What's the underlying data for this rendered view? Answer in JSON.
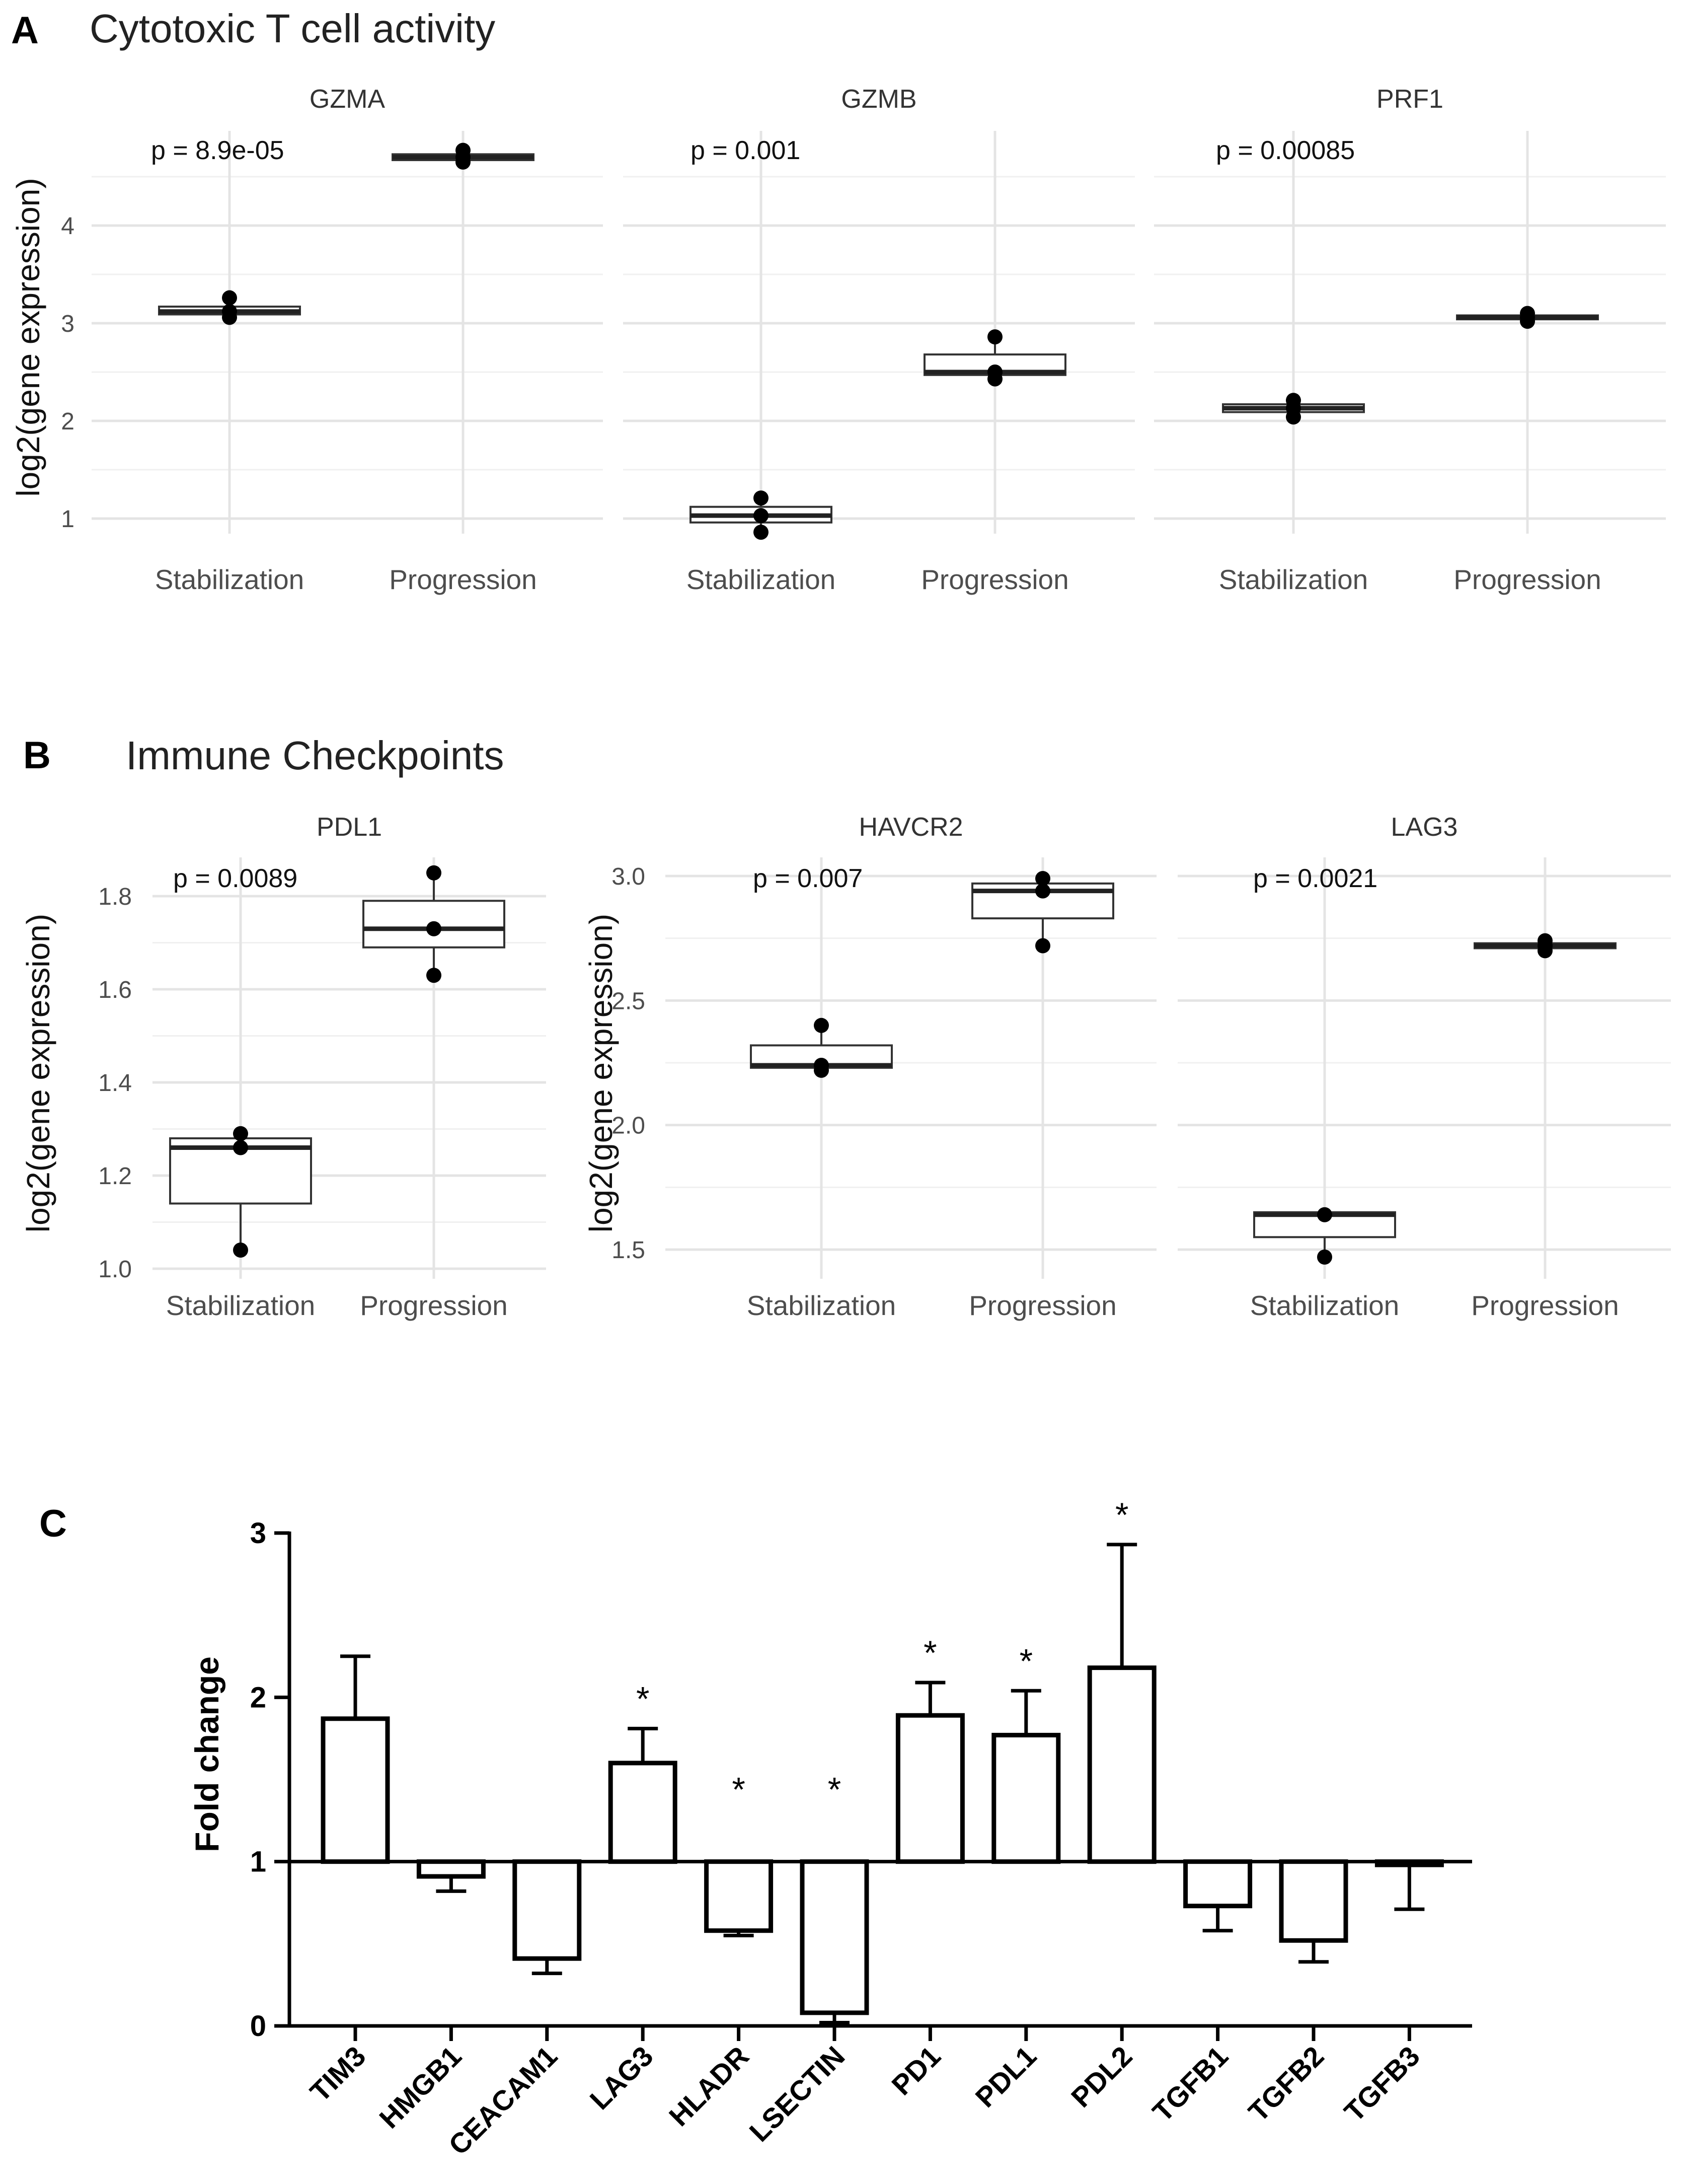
{
  "panels": {
    "A": {
      "letter": "A",
      "title": "Cytotoxic T cell activity"
    },
    "B": {
      "letter": "B",
      "title": "Immune Checkpoints"
    },
    "C": {
      "letter": "C"
    }
  },
  "chart_data": [
    {
      "id": "A-GZMA",
      "type": "box",
      "panel": "A",
      "title": "GZMA",
      "pvalue": "p = 8.9e-05",
      "ylabel": "log2(gene expression)",
      "ylim": [
        0.75,
        4.85
      ],
      "yticks": [
        1,
        2,
        3,
        4
      ],
      "tick_labels": [
        "1",
        "2",
        "3",
        "4"
      ],
      "categories": [
        "Stabilization",
        "Progression"
      ],
      "boxes": [
        {
          "group": "Stabilization",
          "q1": 3.09,
          "median": 3.12,
          "q3": 3.17,
          "wmin": 3.06,
          "wmax": 3.26,
          "points": [
            3.06,
            3.12,
            3.26
          ]
        },
        {
          "group": "Progression",
          "q1": 4.67,
          "median": 4.7,
          "q3": 4.73,
          "wmin": 4.65,
          "wmax": 4.77,
          "points": [
            4.65,
            4.7,
            4.77
          ]
        }
      ]
    },
    {
      "id": "A-GZMB",
      "type": "box",
      "panel": "A",
      "title": "GZMB",
      "pvalue": "p = 0.001",
      "ylabel": "",
      "ylim": [
        0.75,
        4.85
      ],
      "yticks": [
        1,
        2,
        3,
        4
      ],
      "tick_labels": [],
      "categories": [
        "Stabilization",
        "Progression"
      ],
      "boxes": [
        {
          "group": "Stabilization",
          "q1": 0.96,
          "median": 1.03,
          "q3": 1.12,
          "wmin": 0.86,
          "wmax": 1.21,
          "points": [
            0.86,
            1.03,
            1.21
          ]
        },
        {
          "group": "Progression",
          "q1": 2.47,
          "median": 2.5,
          "q3": 2.68,
          "wmin": 2.43,
          "wmax": 2.86,
          "points": [
            2.43,
            2.5,
            2.86
          ]
        }
      ]
    },
    {
      "id": "A-PRF1",
      "type": "box",
      "panel": "A",
      "title": "PRF1",
      "pvalue": "p = 0.00085",
      "ylabel": "",
      "ylim": [
        0.75,
        4.85
      ],
      "yticks": [
        1,
        2,
        3,
        4
      ],
      "tick_labels": [],
      "categories": [
        "Stabilization",
        "Progression"
      ],
      "boxes": [
        {
          "group": "Stabilization",
          "q1": 2.09,
          "median": 2.13,
          "q3": 2.17,
          "wmin": 2.04,
          "wmax": 2.21,
          "points": [
            2.04,
            2.13,
            2.21
          ]
        },
        {
          "group": "Progression",
          "q1": 3.04,
          "median": 3.06,
          "q3": 3.08,
          "wmin": 3.02,
          "wmax": 3.1,
          "points": [
            3.02,
            3.06,
            3.1
          ]
        }
      ]
    },
    {
      "id": "B-PDL1",
      "type": "box",
      "panel": "B",
      "title": "PDL1",
      "pvalue": "p = 0.0089",
      "ylabel": "log2(gene expression)",
      "ylim": [
        0.98,
        1.88
      ],
      "yticks": [
        1.0,
        1.2,
        1.4,
        1.6,
        1.8
      ],
      "tick_labels": [
        "1.0",
        "1.2",
        "1.4",
        "1.6",
        "1.8"
      ],
      "categories": [
        "Stabilization",
        "Progression"
      ],
      "boxes": [
        {
          "group": "Stabilization",
          "q1": 1.14,
          "median": 1.26,
          "q3": 1.28,
          "wmin": 1.04,
          "wmax": 1.29,
          "points": [
            1.04,
            1.26,
            1.29
          ]
        },
        {
          "group": "Progression",
          "q1": 1.69,
          "median": 1.73,
          "q3": 1.79,
          "wmin": 1.63,
          "wmax": 1.85,
          "points": [
            1.63,
            1.73,
            1.85
          ]
        }
      ]
    },
    {
      "id": "B-HAVCR2",
      "type": "box",
      "panel": "B",
      "title": "HAVCR2",
      "pvalue": "p = 0.007",
      "ylabel": "log2(gene expression)",
      "ylim": [
        1.4,
        3.07
      ],
      "yticks": [
        1.5,
        2.0,
        2.5,
        3.0
      ],
      "tick_labels": [
        "1.5",
        "2.0",
        "2.5",
        "3.0"
      ],
      "categories": [
        "Stabilization",
        "Progression"
      ],
      "boxes": [
        {
          "group": "Stabilization",
          "q1": 2.23,
          "median": 2.24,
          "q3": 2.32,
          "wmin": 2.22,
          "wmax": 2.4,
          "points": [
            2.22,
            2.24,
            2.4
          ]
        },
        {
          "group": "Progression",
          "q1": 2.83,
          "median": 2.94,
          "q3": 2.97,
          "wmin": 2.72,
          "wmax": 2.99,
          "points": [
            2.72,
            2.94,
            2.99
          ]
        }
      ]
    },
    {
      "id": "B-LAG3",
      "type": "box",
      "panel": "B",
      "title": "LAG3",
      "pvalue": "p = 0.0021",
      "ylabel": "",
      "ylim": [
        1.4,
        3.07
      ],
      "yticks": [
        1.5,
        2.0,
        2.5,
        3.0
      ],
      "tick_labels": [],
      "categories": [
        "Stabilization",
        "Progression"
      ],
      "boxes": [
        {
          "group": "Stabilization",
          "q1": 1.55,
          "median": 1.64,
          "q3": 1.65,
          "wmin": 1.47,
          "wmax": 1.64,
          "points": [
            1.47,
            1.64
          ]
        },
        {
          "group": "Progression",
          "q1": 2.71,
          "median": 2.72,
          "q3": 2.73,
          "wmin": 2.7,
          "wmax": 2.74,
          "points": [
            2.7,
            2.72,
            2.74
          ]
        }
      ]
    },
    {
      "id": "C-foldchange",
      "type": "bar",
      "panel": "C",
      "ylabel": "Fold change",
      "ylim": [
        0,
        3
      ],
      "yticks": [
        0,
        1,
        2,
        3
      ],
      "tick_labels": [
        "0",
        "1",
        "2",
        "3"
      ],
      "baseline": 1,
      "categories": [
        "TIM3",
        "HMGB1",
        "CEACAM1",
        "LAG3",
        "HLADR",
        "LSECTIN",
        "PD1",
        "PDL1",
        "PDL2",
        "TGFB1",
        "TGFB2",
        "TGFB3"
      ],
      "values": [
        1.87,
        0.91,
        0.41,
        1.6,
        0.58,
        0.08,
        1.89,
        1.77,
        2.18,
        0.73,
        0.52,
        0.98
      ],
      "errors": [
        0.38,
        0.09,
        0.09,
        0.21,
        0.03,
        0.06,
        0.2,
        0.27,
        0.75,
        0.15,
        0.13,
        0.27
      ],
      "significance": [
        "",
        "",
        "",
        "*",
        "*",
        "*",
        "*",
        "*",
        "*",
        "",
        "",
        ""
      ]
    }
  ]
}
